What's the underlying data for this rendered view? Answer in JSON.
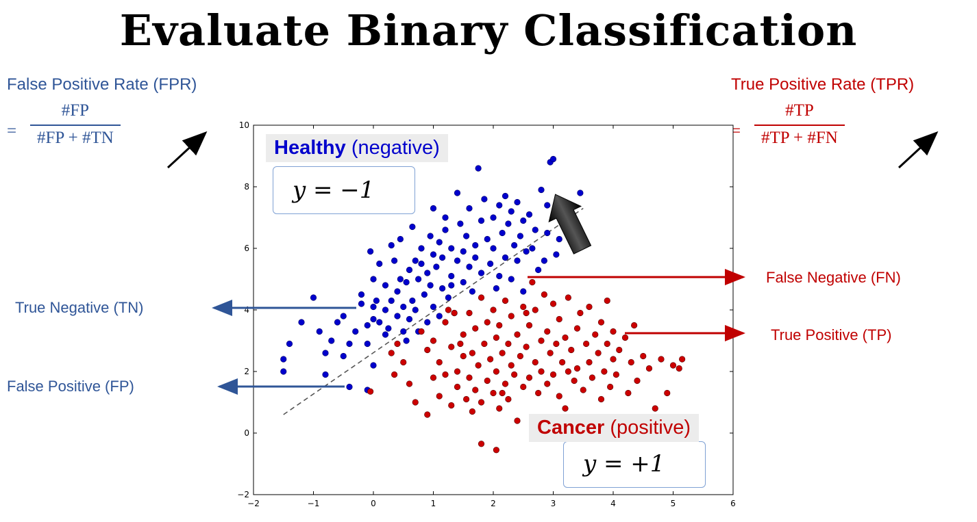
{
  "title": "Evaluate Binary Classification",
  "fpr": {
    "label": "False Positive Rate (FPR)",
    "eq": "=",
    "numerator": "#FP",
    "denominator": "#FP + #TN"
  },
  "tpr": {
    "label": "True Positive Rate (TPR)",
    "eq": "=",
    "numerator": "#TP",
    "denominator": "#TP + #FN"
  },
  "healthy": {
    "name": "Healthy",
    "note": "(negative)",
    "eq": "y = −1"
  },
  "cancer": {
    "name": "Cancer",
    "note": "(positive)",
    "eq": "y = +1"
  },
  "annotations": {
    "tn": "True Negative (TN)",
    "fp": "False Positive (FP)",
    "fn": "False Negative (FN)",
    "tp": "True Positive (TP)"
  },
  "colors": {
    "negative": "#0000cc",
    "positive": "#cc0000",
    "blue_text": "#2f5597",
    "red_text": "#c00000"
  },
  "chart_data": {
    "type": "scatter",
    "title": "",
    "xlabel": "",
    "ylabel": "",
    "xlim": [
      -2,
      6
    ],
    "ylim": [
      -2,
      10
    ],
    "xticks": [
      -2,
      -1,
      0,
      1,
      2,
      3,
      4,
      5,
      6
    ],
    "yticks": [
      -2,
      0,
      2,
      4,
      6,
      8,
      10
    ],
    "grid": false,
    "decision_boundary": {
      "x": [
        -1.5,
        3.5
      ],
      "y": [
        0.6,
        7.3
      ],
      "style": "dashed"
    },
    "series": [
      {
        "name": "Healthy (negative)",
        "color": "#0000cc",
        "points": [
          [
            -1.5,
            2.0
          ],
          [
            -1.5,
            2.4
          ],
          [
            -1.4,
            2.9
          ],
          [
            -1.2,
            3.6
          ],
          [
            -1.0,
            4.4
          ],
          [
            -0.9,
            3.3
          ],
          [
            -0.8,
            2.6
          ],
          [
            -0.8,
            1.9
          ],
          [
            -0.7,
            3.0
          ],
          [
            -0.6,
            3.6
          ],
          [
            -0.5,
            2.5
          ],
          [
            -0.5,
            3.8
          ],
          [
            -0.4,
            2.9
          ],
          [
            -0.3,
            3.3
          ],
          [
            -0.2,
            4.2
          ],
          [
            -0.2,
            4.5
          ],
          [
            -0.1,
            2.9
          ],
          [
            -0.1,
            3.5
          ],
          [
            -0.4,
            1.5
          ],
          [
            -0.1,
            1.4
          ],
          [
            0.0,
            2.2
          ],
          [
            0.0,
            4.1
          ],
          [
            0.0,
            5.0
          ],
          [
            -0.05,
            5.9
          ],
          [
            0.0,
            3.7
          ],
          [
            0.05,
            4.3
          ],
          [
            0.1,
            5.5
          ],
          [
            0.1,
            3.6
          ],
          [
            0.2,
            4.8
          ],
          [
            0.2,
            3.2
          ],
          [
            0.2,
            4.0
          ],
          [
            0.25,
            3.4
          ],
          [
            0.3,
            6.1
          ],
          [
            0.3,
            4.3
          ],
          [
            0.35,
            5.6
          ],
          [
            0.4,
            3.8
          ],
          [
            0.4,
            4.6
          ],
          [
            0.45,
            6.3
          ],
          [
            0.45,
            5.0
          ],
          [
            0.5,
            3.3
          ],
          [
            0.5,
            4.1
          ],
          [
            0.55,
            3.0
          ],
          [
            0.55,
            4.9
          ],
          [
            0.6,
            5.3
          ],
          [
            0.6,
            3.7
          ],
          [
            0.65,
            4.3
          ],
          [
            0.65,
            6.7
          ],
          [
            0.7,
            4.0
          ],
          [
            0.7,
            5.6
          ],
          [
            0.75,
            3.3
          ],
          [
            0.75,
            5.0
          ],
          [
            0.8,
            6.0
          ],
          [
            0.85,
            4.5
          ],
          [
            0.9,
            3.6
          ],
          [
            0.9,
            5.2
          ],
          [
            0.95,
            6.4
          ],
          [
            0.95,
            4.8
          ],
          [
            1.0,
            7.3
          ],
          [
            1.0,
            5.8
          ],
          [
            1.0,
            4.1
          ],
          [
            1.05,
            5.4
          ],
          [
            1.1,
            3.8
          ],
          [
            1.1,
            6.2
          ],
          [
            1.15,
            4.7
          ],
          [
            1.15,
            5.7
          ],
          [
            1.2,
            7.0
          ],
          [
            1.2,
            6.6
          ],
          [
            1.25,
            4.4
          ],
          [
            1.3,
            5.1
          ],
          [
            1.3,
            6.0
          ],
          [
            1.35,
            3.9
          ],
          [
            1.4,
            5.6
          ],
          [
            1.4,
            7.8
          ],
          [
            1.45,
            6.8
          ],
          [
            1.5,
            4.9
          ],
          [
            1.5,
            5.9
          ],
          [
            1.55,
            6.4
          ],
          [
            1.6,
            7.3
          ],
          [
            1.6,
            5.4
          ],
          [
            1.65,
            4.6
          ],
          [
            1.7,
            6.1
          ],
          [
            1.7,
            5.7
          ],
          [
            1.75,
            8.6
          ],
          [
            1.8,
            6.9
          ],
          [
            1.8,
            5.2
          ],
          [
            1.85,
            7.6
          ],
          [
            1.9,
            6.3
          ],
          [
            1.95,
            5.5
          ],
          [
            2.0,
            7.0
          ],
          [
            2.0,
            6.0
          ],
          [
            2.05,
            4.7
          ],
          [
            2.1,
            7.4
          ],
          [
            2.1,
            5.1
          ],
          [
            2.15,
            6.5
          ],
          [
            2.2,
            7.7
          ],
          [
            2.2,
            5.7
          ],
          [
            2.25,
            6.8
          ],
          [
            2.3,
            5.0
          ],
          [
            2.3,
            7.2
          ],
          [
            2.35,
            6.1
          ],
          [
            2.4,
            7.5
          ],
          [
            2.4,
            5.6
          ],
          [
            2.45,
            6.4
          ],
          [
            2.5,
            6.9
          ],
          [
            2.5,
            4.6
          ],
          [
            2.55,
            5.9
          ],
          [
            2.6,
            7.1
          ],
          [
            2.65,
            6.0
          ],
          [
            2.7,
            6.6
          ],
          [
            2.75,
            5.3
          ],
          [
            2.8,
            7.9
          ],
          [
            2.85,
            5.6
          ],
          [
            2.9,
            6.5
          ],
          [
            2.9,
            7.4
          ],
          [
            2.95,
            8.8
          ],
          [
            3.0,
            8.9
          ],
          [
            3.05,
            5.8
          ],
          [
            3.1,
            6.3
          ],
          [
            3.45,
            7.8
          ],
          [
            1.3,
            4.8
          ],
          [
            0.8,
            5.5
          ]
        ]
      },
      {
        "name": "Cancer (positive)",
        "color": "#cc0000",
        "points": [
          [
            -0.05,
            1.35
          ],
          [
            0.3,
            2.6
          ],
          [
            0.5,
            2.3
          ],
          [
            0.6,
            1.6
          ],
          [
            0.7,
            1.0
          ],
          [
            0.8,
            3.3
          ],
          [
            0.9,
            2.7
          ],
          [
            0.9,
            0.6
          ],
          [
            1.0,
            1.8
          ],
          [
            1.0,
            3.0
          ],
          [
            1.1,
            2.3
          ],
          [
            1.1,
            1.2
          ],
          [
            1.2,
            3.6
          ],
          [
            1.2,
            1.9
          ],
          [
            1.3,
            2.8
          ],
          [
            1.3,
            0.9
          ],
          [
            1.35,
            3.9
          ],
          [
            1.4,
            2.0
          ],
          [
            1.4,
            1.5
          ],
          [
            1.5,
            3.2
          ],
          [
            1.5,
            2.5
          ],
          [
            1.55,
            1.1
          ],
          [
            1.6,
            3.9
          ],
          [
            1.6,
            1.8
          ],
          [
            1.65,
            2.6
          ],
          [
            1.7,
            3.4
          ],
          [
            1.7,
            1.4
          ],
          [
            1.75,
            2.2
          ],
          [
            1.8,
            4.4
          ],
          [
            1.8,
            1.0
          ],
          [
            1.85,
            2.9
          ],
          [
            1.9,
            1.7
          ],
          [
            1.9,
            3.6
          ],
          [
            1.95,
            2.4
          ],
          [
            2.0,
            4.0
          ],
          [
            2.0,
            1.3
          ],
          [
            2.05,
            3.1
          ],
          [
            2.05,
            2.0
          ],
          [
            2.1,
            0.8
          ],
          [
            2.1,
            3.5
          ],
          [
            2.15,
            2.6
          ],
          [
            2.2,
            1.6
          ],
          [
            2.2,
            4.3
          ],
          [
            2.25,
            2.9
          ],
          [
            2.25,
            1.1
          ],
          [
            2.3,
            2.2
          ],
          [
            2.3,
            3.8
          ],
          [
            2.35,
            1.9
          ],
          [
            2.4,
            3.2
          ],
          [
            2.4,
            0.4
          ],
          [
            2.45,
            2.5
          ],
          [
            2.5,
            4.1
          ],
          [
            2.5,
            1.5
          ],
          [
            2.55,
            2.8
          ],
          [
            2.6,
            3.5
          ],
          [
            2.6,
            1.8
          ],
          [
            2.65,
            4.9
          ],
          [
            2.7,
            2.3
          ],
          [
            2.7,
            4.0
          ],
          [
            2.75,
            1.3
          ],
          [
            2.8,
            3.0
          ],
          [
            2.8,
            2.0
          ],
          [
            2.85,
            4.5
          ],
          [
            2.9,
            1.6
          ],
          [
            2.9,
            3.3
          ],
          [
            2.95,
            2.6
          ],
          [
            3.0,
            4.2
          ],
          [
            3.0,
            1.9
          ],
          [
            3.05,
            2.9
          ],
          [
            3.1,
            3.7
          ],
          [
            3.1,
            1.2
          ],
          [
            3.15,
            2.3
          ],
          [
            3.2,
            3.1
          ],
          [
            3.2,
            0.8
          ],
          [
            3.25,
            4.4
          ],
          [
            3.3,
            2.7
          ],
          [
            3.35,
            1.7
          ],
          [
            3.4,
            3.4
          ],
          [
            3.4,
            2.1
          ],
          [
            3.45,
            3.9
          ],
          [
            3.5,
            1.4
          ],
          [
            3.55,
            2.9
          ],
          [
            3.6,
            2.3
          ],
          [
            3.6,
            4.1
          ],
          [
            3.65,
            1.8
          ],
          [
            3.7,
            3.2
          ],
          [
            3.75,
            2.6
          ],
          [
            3.8,
            1.1
          ],
          [
            3.8,
            3.6
          ],
          [
            3.85,
            2.0
          ],
          [
            3.9,
            2.9
          ],
          [
            3.9,
            4.3
          ],
          [
            3.95,
            1.5
          ],
          [
            4.0,
            2.4
          ],
          [
            4.0,
            3.3
          ],
          [
            4.05,
            1.9
          ],
          [
            4.1,
            2.7
          ],
          [
            4.2,
            3.1
          ],
          [
            4.25,
            1.3
          ],
          [
            4.3,
            2.3
          ],
          [
            4.35,
            3.5
          ],
          [
            4.4,
            1.7
          ],
          [
            4.5,
            2.5
          ],
          [
            4.6,
            2.1
          ],
          [
            4.7,
            0.8
          ],
          [
            4.8,
            2.4
          ],
          [
            4.9,
            1.3
          ],
          [
            5.0,
            2.2
          ],
          [
            5.1,
            2.1
          ],
          [
            5.15,
            2.4
          ],
          [
            1.8,
            -0.35
          ],
          [
            2.05,
            -0.55
          ],
          [
            0.4,
            2.9
          ],
          [
            1.25,
            4.0
          ],
          [
            0.35,
            1.9
          ],
          [
            1.45,
            2.9
          ],
          [
            2.55,
            3.9
          ],
          [
            3.25,
            2.0
          ],
          [
            2.15,
            1.3
          ],
          [
            1.65,
            0.7
          ]
        ]
      }
    ]
  }
}
